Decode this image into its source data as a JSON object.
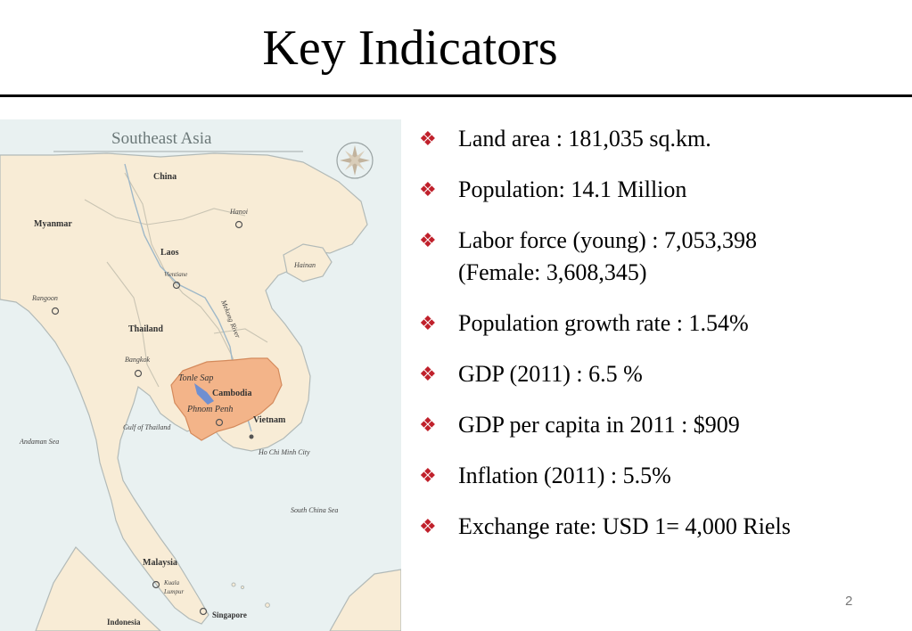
{
  "slide": {
    "title": "Key Indicators",
    "page_number": "2"
  },
  "map": {
    "heading": "Southeast Asia",
    "labels": {
      "china": "China",
      "myanmar": "Myanmar",
      "hanoi": "Hanoi",
      "laos": "Laos",
      "vientiane": "Vientiane",
      "hainan": "Hainan",
      "rangoon": "Rangoon",
      "thailand": "Thailand",
      "mekong": "Mekong River",
      "bangkok": "Bangkok",
      "tonle_sap": "Tonle Sap",
      "cambodia": "Cambodia",
      "phnom_penh": "Phnom Penh",
      "gulf": "Gulf of Thailand",
      "vietnam": "Vietnam",
      "andaman": "Andaman Sea",
      "hcmc": "Ho Chi Minh City",
      "south_china_sea": "South China Sea",
      "malaysia": "Malaysia",
      "kuala": "Kuala",
      "lumpur": "Lumpur",
      "singapore": "Singapore",
      "indonesia": "Indonesia"
    },
    "colors": {
      "sea": "#e9f1f1",
      "land": "#f8ecd6",
      "cambodia": "#f3b489",
      "lake": "#6f8fd0",
      "coast": "#b2bab8"
    }
  },
  "indicators": [
    {
      "line1": "Land area : 181,035 sq.km.",
      "line2": ""
    },
    {
      "line1": "Population: 14.1 Million",
      "line2": ""
    },
    {
      "line1": "Labor force (young) : 7,053,398",
      "line2": "(Female: 3,608,345)"
    },
    {
      "line1": "Population growth rate : 1.54%",
      "line2": ""
    },
    {
      "line1": "GDP (2011) : 6.5 %",
      "line2": ""
    },
    {
      "line1": "GDP per capita in 2011 : $909",
      "line2": ""
    },
    {
      "line1": "Inflation (2011) : 5.5%",
      "line2": ""
    },
    {
      "line1": "Exchange rate: USD 1= 4,000 Riels",
      "line2": ""
    }
  ],
  "bullet_symbol": "❖"
}
